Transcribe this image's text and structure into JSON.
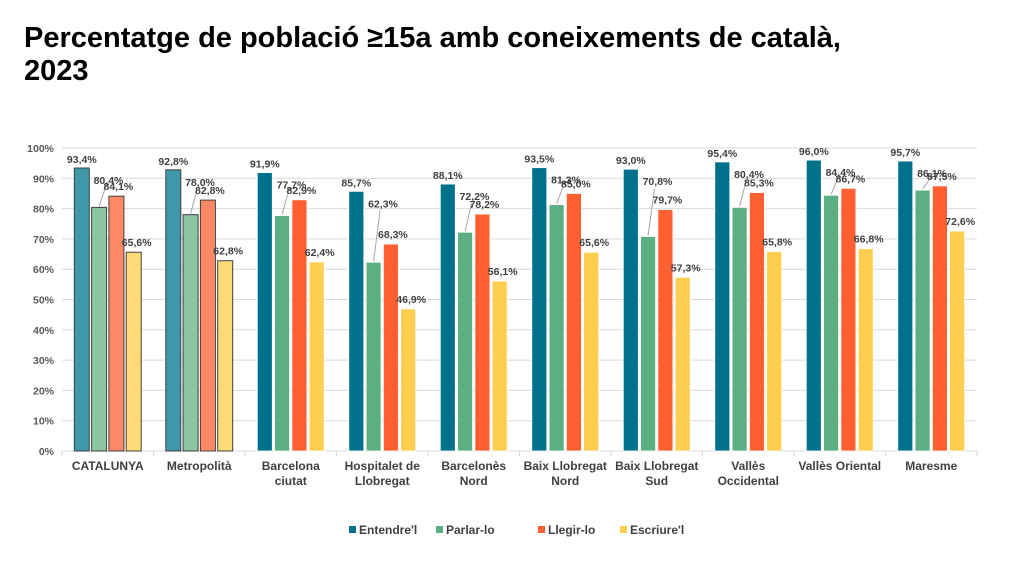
{
  "chart_data": {
    "type": "bar",
    "title": "Percentatge de població ≥15a amb coneixements de català, 2023",
    "xlabel": "",
    "ylabel": "",
    "ylim": [
      0,
      100
    ],
    "yticks": [
      "0%",
      "10%",
      "20%",
      "30%",
      "40%",
      "50%",
      "60%",
      "70%",
      "80%",
      "90%",
      "100%"
    ],
    "grid": true,
    "legend_position": "bottom",
    "categories": [
      [
        "CATALUNYA"
      ],
      [
        "Metropolità"
      ],
      [
        "Barcelona",
        "ciutat"
      ],
      [
        "Hospitalet de",
        "Llobregat"
      ],
      [
        "Barcelonès",
        "Nord"
      ],
      [
        "Baix Llobregat",
        "Nord"
      ],
      [
        "Baix Llobregat",
        "Sud"
      ],
      [
        "Vallès",
        "Occidental"
      ],
      [
        "Vallès Oriental"
      ],
      [
        "Maresme"
      ]
    ],
    "highlighted_categories": [
      0,
      1
    ],
    "series": [
      {
        "name": "Entendre'l",
        "color": "#00718B",
        "light_color": "#3E98A8",
        "values": [
          93.4,
          92.8,
          91.9,
          85.7,
          88.1,
          93.5,
          93.0,
          95.4,
          96.0,
          95.7
        ],
        "labels": [
          "93,4%",
          "92,8%",
          "91,9%",
          "85,7%",
          "88,1%",
          "93,5%",
          "93,0%",
          "95,4%",
          "96,0%",
          "95,7%"
        ]
      },
      {
        "name": "Parlar-lo",
        "color": "#5BAF80",
        "light_color": "#8BC5A2",
        "values": [
          80.4,
          78.0,
          77.7,
          62.3,
          72.2,
          81.3,
          70.8,
          80.4,
          84.4,
          86.1
        ],
        "labels": [
          "80,4%",
          "78,0%",
          "77,7%",
          "62,3%",
          "72,2%",
          "81,3%",
          "70,8%",
          "80,4%",
          "84,4%",
          "86,1%"
        ]
      },
      {
        "name": "Llegir-lo",
        "color": "#FF5F31",
        "light_color": "#FF8966",
        "values": [
          84.1,
          82.8,
          82.9,
          68.3,
          78.2,
          85.0,
          79.7,
          85.3,
          86.7,
          87.5
        ],
        "labels": [
          "84,1%",
          "82,8%",
          "82,9%",
          "68,3%",
          "78,2%",
          "85,0%",
          "79,7%",
          "85,3%",
          "86,7%",
          "87,5%"
        ]
      },
      {
        "name": "Escriure'l",
        "color": "#FFCE4F",
        "light_color": "#FFDB78",
        "values": [
          65.6,
          62.8,
          62.4,
          46.9,
          56.1,
          65.6,
          57.3,
          65.8,
          66.8,
          72.6
        ],
        "labels": [
          "65,6%",
          "62,8%",
          "62,4%",
          "46,9%",
          "56,1%",
          "65,6%",
          "57,3%",
          "65,8%",
          "66,8%",
          "72,6%"
        ]
      }
    ]
  },
  "header": {
    "title_line1": "Percentatge de població ≥15a amb coneixements de català,",
    "title_line2": "2023"
  }
}
